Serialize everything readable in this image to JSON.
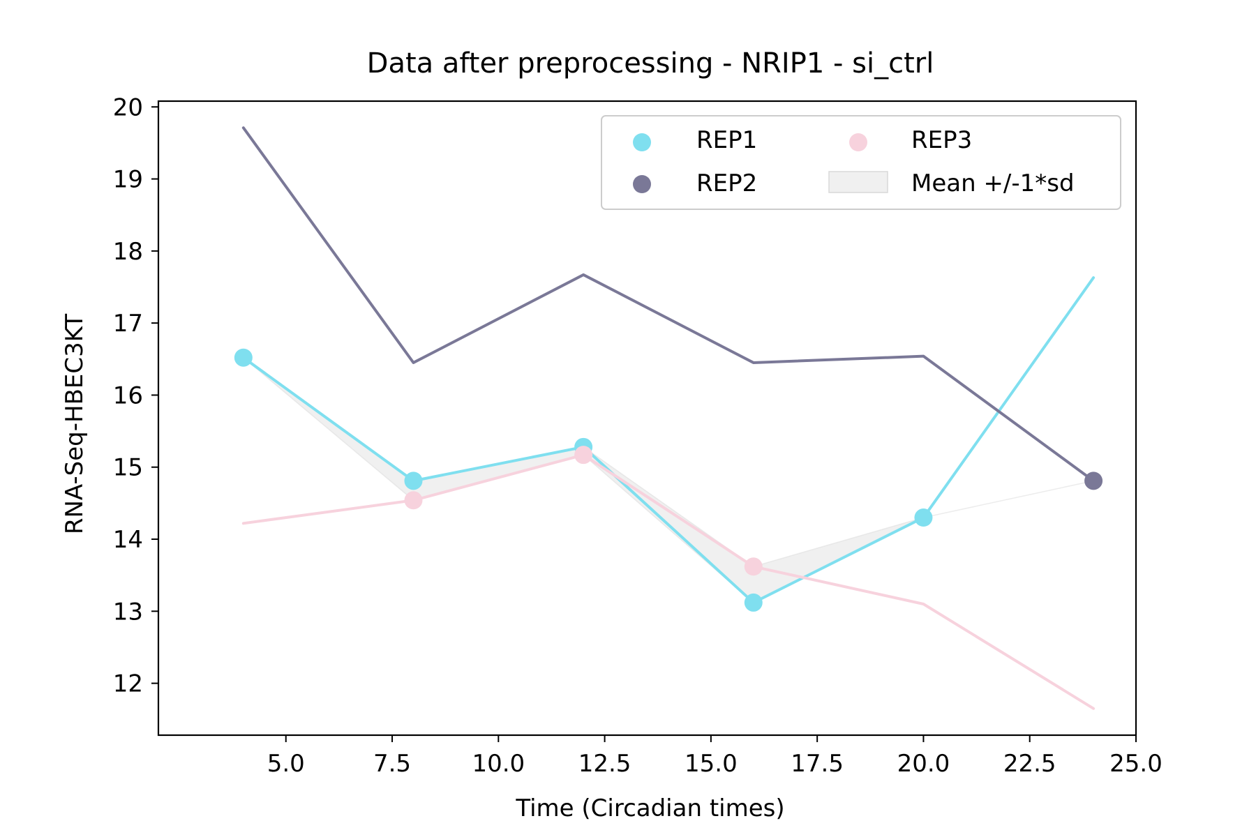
{
  "chart_data": {
    "type": "line",
    "title": "Data after preprocessing - NRIP1 - si_ctrl",
    "xlabel": "Time (Circadian times)",
    "ylabel": "RNA-Seq-HBEC3KT",
    "xlim": [
      2.0,
      25.0
    ],
    "ylim": [
      11.28,
      20.08
    ],
    "xticks": [
      "5.0",
      "7.5",
      "10.0",
      "12.5",
      "15.0",
      "17.5",
      "20.0",
      "22.5",
      "25.0"
    ],
    "yticks": [
      "12",
      "13",
      "14",
      "15",
      "16",
      "17",
      "18",
      "19",
      "20"
    ],
    "grid": false,
    "legend_position": "top-right",
    "series": [
      {
        "name": "REP1",
        "color": "#7fdfef",
        "x": [
          4,
          8,
          12,
          16,
          20,
          24
        ],
        "values": [
          16.52,
          14.81,
          15.28,
          13.12,
          14.3,
          17.63
        ],
        "markers": [
          true,
          true,
          true,
          true,
          true,
          false
        ]
      },
      {
        "name": "REP2",
        "color": "#7a7897",
        "x": [
          4,
          8,
          12,
          16,
          20,
          24
        ],
        "values": [
          19.71,
          16.45,
          17.67,
          16.45,
          16.54,
          14.81
        ],
        "markers": [
          false,
          false,
          false,
          false,
          false,
          true
        ]
      },
      {
        "name": "REP3",
        "color": "#f7d2dd",
        "x": [
          4,
          8,
          12,
          16,
          20,
          24
        ],
        "values": [
          14.22,
          14.54,
          15.17,
          13.62,
          13.1,
          11.65
        ],
        "markers": [
          false,
          true,
          true,
          true,
          false,
          false
        ]
      }
    ],
    "band": {
      "name": "Mean +/-1*sd",
      "color": "#d9d9d9",
      "x": [
        4,
        8,
        12,
        16,
        20,
        24
      ],
      "upper": [
        16.52,
        14.81,
        15.28,
        13.62,
        14.3,
        14.81
      ],
      "lower": [
        16.52,
        14.54,
        15.17,
        13.12,
        14.3,
        14.81
      ]
    },
    "legend_columns": [
      [
        "REP1",
        "REP2"
      ],
      [
        "REP3",
        "Mean +/-1*sd"
      ]
    ]
  }
}
